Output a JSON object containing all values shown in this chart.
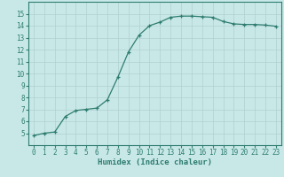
{
  "xlabel": "Humidex (Indice chaleur)",
  "ylabel": "",
  "x": [
    0,
    1,
    2,
    3,
    4,
    5,
    6,
    7,
    8,
    9,
    10,
    11,
    12,
    13,
    14,
    15,
    16,
    17,
    18,
    19,
    20,
    21,
    22,
    23
  ],
  "y": [
    4.8,
    5.0,
    5.1,
    6.4,
    6.9,
    7.0,
    7.1,
    7.8,
    9.7,
    11.8,
    13.2,
    14.0,
    14.3,
    14.7,
    14.8,
    14.8,
    14.75,
    14.7,
    14.35,
    14.15,
    14.1,
    14.1,
    14.05,
    13.95
  ],
  "line_color": "#2e7d6e",
  "marker": "+",
  "marker_size": 3,
  "bg_color": "#c8e8e8",
  "grid_color": "#b0d0d0",
  "tick_color": "#2e7d6e",
  "label_color": "#2e7d6e",
  "ylim": [
    4,
    16
  ],
  "xlim": [
    -0.5,
    23.5
  ],
  "yticks": [
    5,
    6,
    7,
    8,
    9,
    10,
    11,
    12,
    13,
    14,
    15
  ],
  "xticks": [
    0,
    1,
    2,
    3,
    4,
    5,
    6,
    7,
    8,
    9,
    10,
    11,
    12,
    13,
    14,
    15,
    16,
    17,
    18,
    19,
    20,
    21,
    22,
    23
  ],
  "tick_fontsize": 5.5,
  "xlabel_fontsize": 6.5
}
